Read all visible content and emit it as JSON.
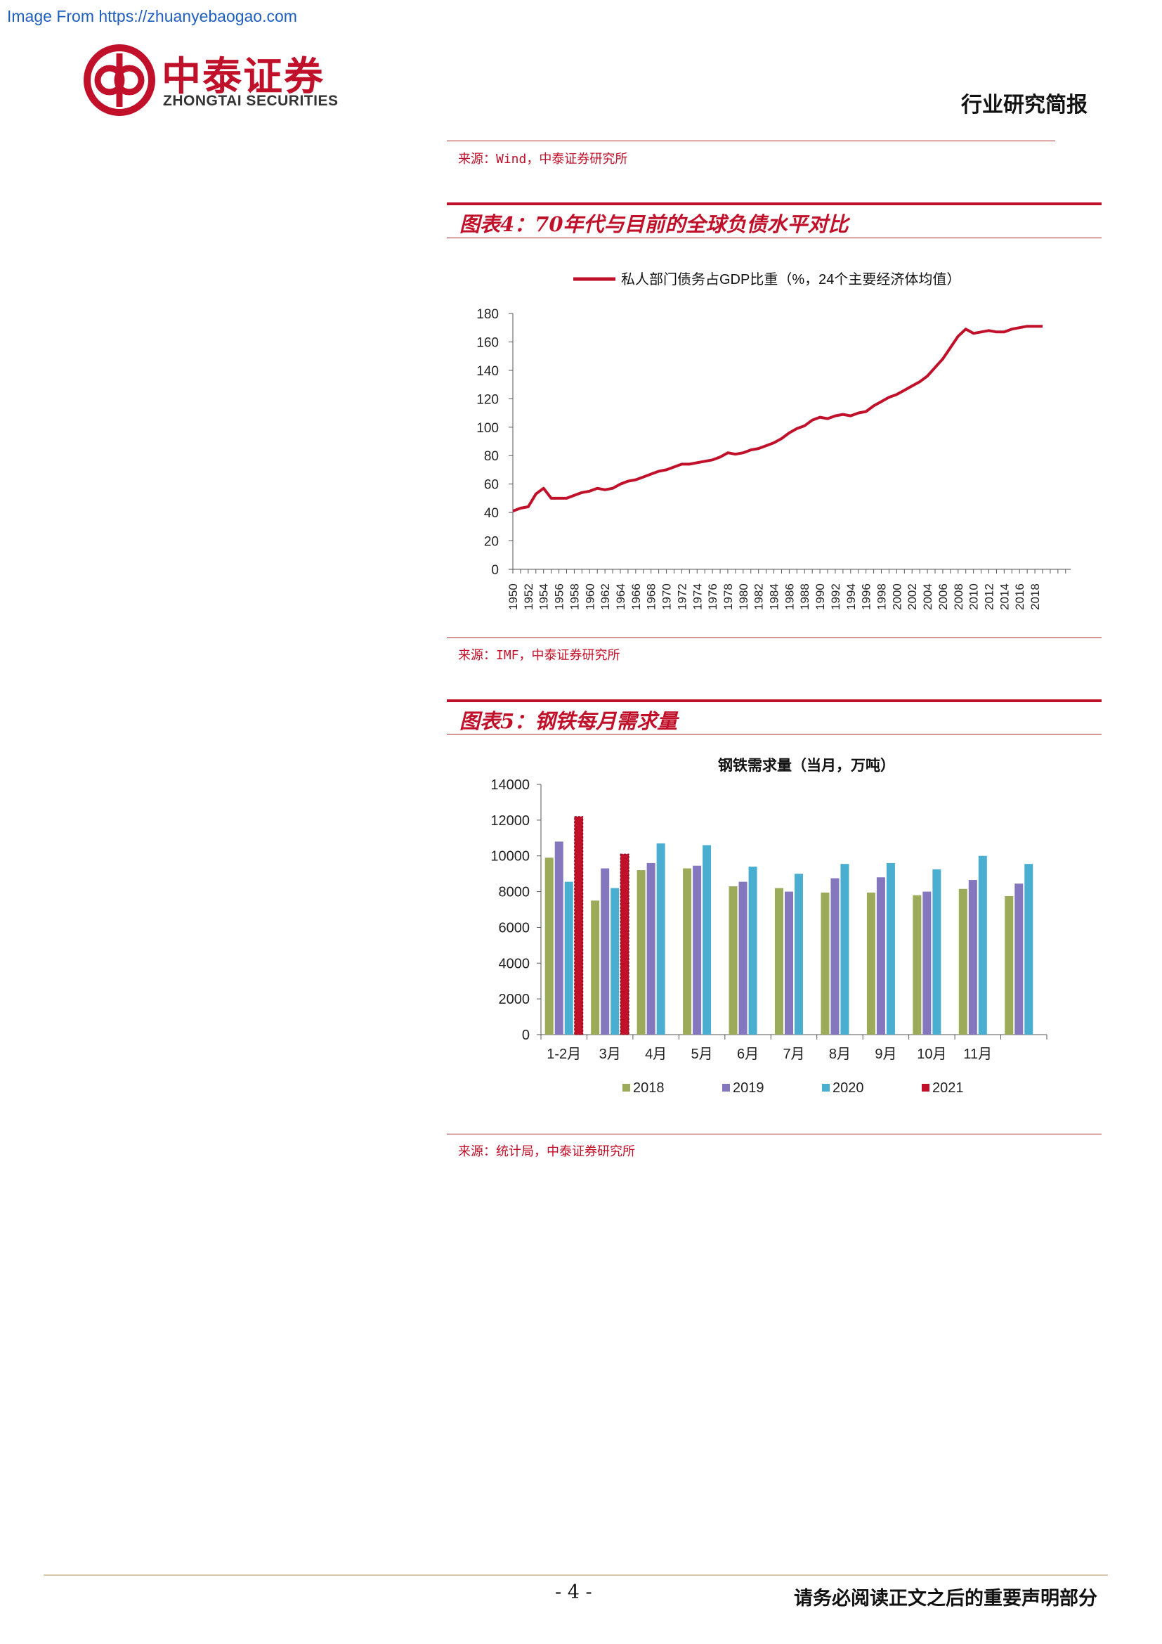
{
  "watermark": "Image From https://zhuanyebaogao.com",
  "logo": {
    "cn": "中泰证券",
    "en": "ZHONGTAI SECURITIES"
  },
  "header": {
    "doc_type": "行业研究简报"
  },
  "source_top": "来源：Wind，中泰证券研究所",
  "figure4": {
    "title": "图表4：70年代与目前的全球负债水平对比",
    "source": "来源：IMF，中泰证券研究所"
  },
  "figure5": {
    "title": "图表5：钢铁每月需求量",
    "source": "来源：统计局，中泰证券研究所"
  },
  "footer": {
    "page": "- 4 -",
    "disclaimer": "请务必阅读正文之后的重要声明部分"
  },
  "colors": {
    "brand_red": "#c0102a",
    "line_red": "#c0102a",
    "olive": "#9bab5a",
    "purple": "#8577be",
    "teal": "#4aaed0"
  },
  "chart_data": [
    {
      "type": "line",
      "title": "",
      "legend": "私人部门债务占GDP比重（%，24个主要经济体均值）",
      "legend_position": "top",
      "xlabel": "",
      "ylabel": "",
      "ylim": [
        0,
        180
      ],
      "yticks": [
        "0",
        "20",
        "40",
        "60",
        "80",
        "100",
        "120",
        "140",
        "160",
        "180"
      ],
      "xticks": [
        "1950",
        "1952",
        "1954",
        "1956",
        "1958",
        "1960",
        "1962",
        "1964",
        "1966",
        "1968",
        "1970",
        "1972",
        "1974",
        "1976",
        "1978",
        "1980",
        "1982",
        "1984",
        "1986",
        "1988",
        "1990",
        "1992",
        "1994",
        "1996",
        "1998",
        "2000",
        "2002",
        "2004",
        "2006",
        "2008",
        "2010",
        "2012",
        "2014",
        "2016",
        "2018"
      ],
      "x": [
        1950,
        1951,
        1952,
        1953,
        1954,
        1955,
        1956,
        1957,
        1958,
        1959,
        1960,
        1961,
        1962,
        1963,
        1964,
        1965,
        1966,
        1967,
        1968,
        1969,
        1970,
        1971,
        1972,
        1973,
        1974,
        1975,
        1976,
        1977,
        1978,
        1979,
        1980,
        1981,
        1982,
        1983,
        1984,
        1985,
        1986,
        1987,
        1988,
        1989,
        1990,
        1991,
        1992,
        1993,
        1994,
        1995,
        1996,
        1997,
        1998,
        1999,
        2000,
        2001,
        2002,
        2003,
        2004,
        2005,
        2006,
        2007,
        2008,
        2009,
        2010,
        2011,
        2012,
        2013,
        2014,
        2015,
        2016,
        2017,
        2018,
        2019
      ],
      "values": [
        41,
        43,
        44,
        53,
        57,
        50,
        50,
        50,
        52,
        54,
        55,
        57,
        56,
        57,
        60,
        62,
        63,
        65,
        67,
        69,
        70,
        72,
        74,
        74,
        75,
        76,
        77,
        79,
        82,
        81,
        82,
        84,
        85,
        87,
        89,
        92,
        96,
        99,
        101,
        105,
        107,
        106,
        108,
        109,
        108,
        110,
        111,
        115,
        118,
        121,
        123,
        126,
        129,
        132,
        136,
        142,
        148,
        156,
        164,
        169,
        166,
        167,
        168,
        167,
        167,
        169,
        170,
        171,
        171,
        171
      ]
    },
    {
      "type": "bar",
      "title": "钢铁需求量（当月，万吨）",
      "xlabel": "",
      "ylabel": "",
      "ylim": [
        0,
        14000
      ],
      "yticks": [
        "0",
        "2000",
        "4000",
        "6000",
        "8000",
        "10000",
        "12000",
        "14000"
      ],
      "legend_position": "bottom",
      "categories": [
        "1-2月",
        "3月",
        "4月",
        "5月",
        "6月",
        "7月",
        "8月",
        "9月",
        "10月",
        "11月",
        ""
      ],
      "series": [
        {
          "name": "2018",
          "color": "#9bab5a",
          "values": [
            9900,
            7500,
            9200,
            9300,
            8300,
            8200,
            7950,
            7950,
            7800,
            8150,
            7750
          ]
        },
        {
          "name": "2019",
          "color": "#8577be",
          "values": [
            10800,
            9300,
            9600,
            9450,
            8550,
            8000,
            8750,
            8800,
            8000,
            8650,
            8450
          ]
        },
        {
          "name": "2020",
          "color": "#4aaed0",
          "values": [
            8550,
            8200,
            10700,
            10600,
            9400,
            9000,
            9550,
            9600,
            9250,
            10000,
            9550
          ]
        },
        {
          "name": "2021",
          "color": "#c0102a",
          "values": [
            12200,
            10100,
            null,
            null,
            null,
            null,
            null,
            null,
            null,
            null,
            null
          ]
        }
      ]
    }
  ]
}
